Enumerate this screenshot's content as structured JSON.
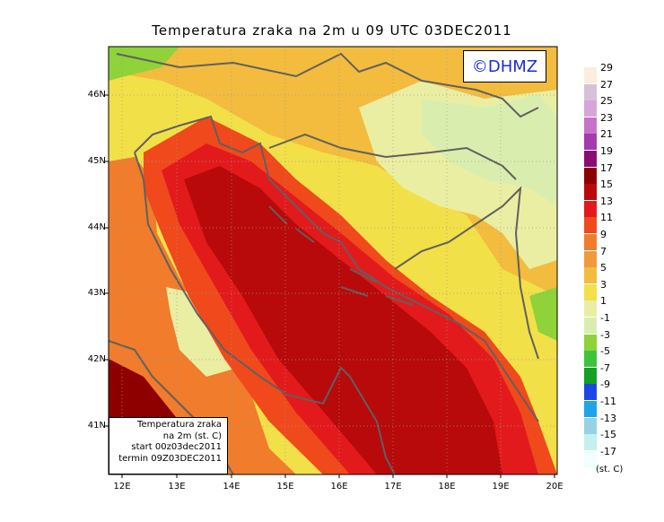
{
  "title": "Temperatura zraka na 2m u 09 UTC 03DEC2011",
  "logo": "©DHMZ",
  "lat_labels": [
    "46N",
    "45N",
    "44N",
    "43N",
    "42N",
    "41N"
  ],
  "lon_labels": [
    "12E",
    "13E",
    "14E",
    "15E",
    "16E",
    "17E",
    "18E",
    "19E",
    "20E"
  ],
  "info": {
    "line1": "Temperatura zraka",
    "line2": "na 2m (st. C)",
    "line3": "start 00z03dec2011",
    "line4": "termin 09Z03DEC2011"
  },
  "legend": {
    "units": "(st. C)",
    "labels": [
      "29",
      "27",
      "25",
      "23",
      "21",
      "19",
      "17",
      "15",
      "13",
      "11",
      "9",
      "7",
      "5",
      "3",
      "1",
      "-1",
      "-3",
      "-5",
      "-7",
      "-9",
      "-11",
      "-13",
      "-15",
      "-17"
    ],
    "colors": [
      "#fbeede",
      "#d8c0d8",
      "#d7a6d8",
      "#c573c8",
      "#a33aae",
      "#8a0d72",
      "#8e0000",
      "#b80a0a",
      "#e31a1c",
      "#f0491c",
      "#f07c2c",
      "#f09a3c",
      "#f3bc3e",
      "#f2e048",
      "#eaeea2",
      "#d9eeae",
      "#8fd23a",
      "#3cc53c",
      "#14a022",
      "#1e46e6",
      "#1ea5e8",
      "#96d2e4",
      "#c4f0ee",
      "#f0fffc"
    ]
  }
}
